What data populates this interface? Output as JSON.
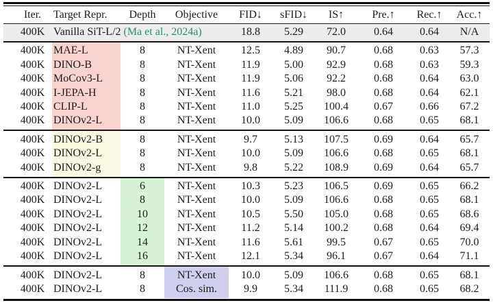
{
  "colors": {
    "text": "#1c1c1c",
    "rule": "#111111",
    "citation": "#2e8b7a",
    "baseline_row_background": "#ececec",
    "highlight_pink": "#f8d3cf",
    "highlight_yellow": "#fcf9e3",
    "highlight_green": "#d7f2d4",
    "highlight_lavender": "#cfcfee"
  },
  "table": {
    "columns": [
      {
        "key": "iter",
        "label": "Iter."
      },
      {
        "key": "target",
        "label": "Target Repr."
      },
      {
        "key": "depth",
        "label": "Depth"
      },
      {
        "key": "objective",
        "label": "Objective"
      },
      {
        "key": "fid",
        "label": "FID↓"
      },
      {
        "key": "sfid",
        "label": "sFID↓"
      },
      {
        "key": "is",
        "label": "IS↑"
      },
      {
        "key": "pre",
        "label": "Pre.↑"
      },
      {
        "key": "rec",
        "label": "Rec.↑"
      },
      {
        "key": "acc",
        "label": "Acc.↑"
      }
    ],
    "sections": [
      {
        "name": "baseline",
        "row_background": "#ececec",
        "rows": [
          {
            "iter": "400K",
            "target": "Vanilla SiT-L/2",
            "citation": "(Ma et al., 2024a)",
            "depth": "",
            "objective": "",
            "fid": "18.8",
            "sfid": "5.29",
            "is": "72.0",
            "pre": "0.64",
            "rec": "0.64",
            "acc": "N/A"
          }
        ]
      },
      {
        "name": "target-representation",
        "highlight": {
          "column": "target",
          "color": "#f8d3cf"
        },
        "rows": [
          {
            "iter": "400K",
            "target": "MAE-L",
            "depth": "8",
            "objective": "NT-Xent",
            "fid": "12.5",
            "sfid": "4.89",
            "is": "90.7",
            "pre": "0.68",
            "rec": "0.63",
            "acc": "57.3"
          },
          {
            "iter": "400K",
            "target": "DINO-B",
            "depth": "8",
            "objective": "NT-Xent",
            "fid": "11.9",
            "sfid": "5.00",
            "is": "92.9",
            "pre": "0.68",
            "rec": "0.63",
            "acc": "59.3"
          },
          {
            "iter": "400K",
            "target": "MoCov3-L",
            "depth": "8",
            "objective": "NT-Xent",
            "fid": "11.9",
            "sfid": "5.06",
            "is": "92.2",
            "pre": "0.68",
            "rec": "0.64",
            "acc": "63.0"
          },
          {
            "iter": "400K",
            "target": "I-JEPA-H",
            "depth": "8",
            "objective": "NT-Xent",
            "fid": "11.6",
            "sfid": "5.21",
            "is": "98.0",
            "pre": "0.68",
            "rec": "0.64",
            "acc": "62.1"
          },
          {
            "iter": "400K",
            "target": "CLIP-L",
            "depth": "8",
            "objective": "NT-Xent",
            "fid": "11.0",
            "sfid": "5.25",
            "is": "100.4",
            "pre": "0.67",
            "rec": "0.66",
            "acc": "67.2"
          },
          {
            "iter": "400K",
            "target": "DINOv2-L",
            "depth": "8",
            "objective": "NT-Xent",
            "fid": "10.0",
            "sfid": "5.09",
            "is": "106.6",
            "pre": "0.68",
            "rec": "0.65",
            "acc": "68.1"
          }
        ]
      },
      {
        "name": "target-model-size",
        "highlight": {
          "column": "target",
          "color": "#fcf9e3"
        },
        "rows": [
          {
            "iter": "400K",
            "target": "DINOv2-B",
            "depth": "8",
            "objective": "NT-Xent",
            "fid": "9.7",
            "sfid": "5.13",
            "is": "107.5",
            "pre": "0.69",
            "rec": "0.64",
            "acc": "65.7"
          },
          {
            "iter": "400K",
            "target": "DINOv2-L",
            "depth": "8",
            "objective": "NT-Xent",
            "fid": "10.0",
            "sfid": "5.09",
            "is": "106.6",
            "pre": "0.68",
            "rec": "0.65",
            "acc": "68.1"
          },
          {
            "iter": "400K",
            "target": "DINOv2-g",
            "depth": "8",
            "objective": "NT-Xent",
            "fid": "9.8",
            "sfid": "5.22",
            "is": "108.9",
            "pre": "0.69",
            "rec": "0.64",
            "acc": "65.7"
          }
        ]
      },
      {
        "name": "alignment-depth",
        "highlight": {
          "column": "depth",
          "color": "#d7f2d4"
        },
        "rows": [
          {
            "iter": "400K",
            "target": "DINOv2-L",
            "depth": "6",
            "objective": "NT-Xent",
            "fid": "10.3",
            "sfid": "5.23",
            "is": "106.5",
            "pre": "0.69",
            "rec": "0.65",
            "acc": "66.2"
          },
          {
            "iter": "400K",
            "target": "DINOv2-L",
            "depth": "8",
            "objective": "NT-Xent",
            "fid": "10.0",
            "sfid": "5.09",
            "is": "106.6",
            "pre": "0.68",
            "rec": "0.65",
            "acc": "68.1"
          },
          {
            "iter": "400K",
            "target": "DINOv2-L",
            "depth": "10",
            "objective": "NT-Xent",
            "fid": "10.5",
            "sfid": "5.50",
            "is": "105.0",
            "pre": "0.68",
            "rec": "0.65",
            "acc": "68.6"
          },
          {
            "iter": "400K",
            "target": "DINOv2-L",
            "depth": "12",
            "objective": "NT-Xent",
            "fid": "11.2",
            "sfid": "5.14",
            "is": "100.2",
            "pre": "0.68",
            "rec": "0.64",
            "acc": "69.4"
          },
          {
            "iter": "400K",
            "target": "DINOv2-L",
            "depth": "14",
            "objective": "NT-Xent",
            "fid": "11.6",
            "sfid": "5.61",
            "is": "99.5",
            "pre": "0.67",
            "rec": "0.65",
            "acc": "70.0"
          },
          {
            "iter": "400K",
            "target": "DINOv2-L",
            "depth": "16",
            "objective": "NT-Xent",
            "fid": "12.1",
            "sfid": "5.34",
            "is": "96.1",
            "pre": "0.67",
            "rec": "0.64",
            "acc": "71.1"
          }
        ]
      },
      {
        "name": "objective",
        "highlight": {
          "column": "objective",
          "color": "#cfcfee"
        },
        "rows": [
          {
            "iter": "400K",
            "target": "DINOv2-L",
            "depth": "8",
            "objective": "NT-Xent",
            "fid": "10.0",
            "sfid": "5.09",
            "is": "106.6",
            "pre": "0.68",
            "rec": "0.65",
            "acc": "68.1"
          },
          {
            "iter": "400K",
            "target": "DINOv2-L",
            "depth": "8",
            "objective": "Cos. sim.",
            "fid": "9.9",
            "sfid": "5.34",
            "is": "111.9",
            "pre": "0.68",
            "rec": "0.65",
            "acc": "68.2"
          }
        ]
      }
    ]
  }
}
